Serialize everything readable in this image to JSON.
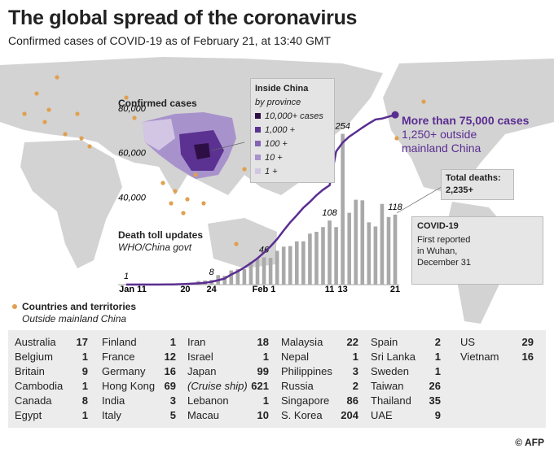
{
  "title": "The global spread of the coronavirus",
  "subtitle": "Confirmed cases of COVID-19 as of February 21, at 13:40 GMT",
  "chart_data": {
    "type": "line-bar",
    "categories": [
      "Jan 11",
      null,
      null,
      null,
      null,
      null,
      null,
      null,
      null,
      "20",
      null,
      null,
      null,
      "24",
      null,
      null,
      null,
      null,
      null,
      null,
      null,
      "Feb 1",
      null,
      null,
      null,
      null,
      null,
      null,
      null,
      null,
      null,
      "11",
      null,
      "13",
      null,
      null,
      null,
      null,
      null,
      null,
      null,
      "21"
    ],
    "ylim": [
      0,
      80000
    ],
    "yticks": [
      {
        "value": 40000,
        "label": "40,000"
      },
      {
        "value": 60000,
        "label": "60,000"
      },
      {
        "value": 80000,
        "label": "80,000"
      }
    ],
    "series": [
      {
        "name": "Confirmed cases",
        "type": "line",
        "color": "#5a2d91",
        "values": [
          41,
          41,
          41,
          41,
          41,
          45,
          62,
          121,
          198,
          291,
          440,
          571,
          830,
          1287,
          1975,
          2744,
          4515,
          5974,
          7711,
          9692,
          11791,
          14380,
          17205,
          20438,
          24324,
          28018,
          31161,
          34546,
          37198,
          40171,
          42638,
          44653,
          59804,
          63851,
          66492,
          68500,
          70548,
          72436,
          74185,
          74576,
          75465,
          76288
        ]
      },
      {
        "name": "Death toll updates",
        "source": "WHO/China govt",
        "type": "bar",
        "color": "#a9a9a9",
        "values": [
          1,
          null,
          null,
          null,
          null,
          null,
          null,
          null,
          null,
          null,
          null,
          6,
          7,
          8,
          16,
          15,
          24,
          26,
          26,
          38,
          43,
          46,
          45,
          57,
          64,
          65,
          73,
          73,
          86,
          89,
          97,
          108,
          97,
          254,
          121,
          143,
          142,
          105,
          98,
          136,
          114,
          118
        ],
        "value_labels": [
          "1",
          null,
          null,
          null,
          null,
          null,
          null,
          null,
          null,
          null,
          null,
          null,
          null,
          "8",
          null,
          null,
          null,
          null,
          null,
          null,
          null,
          "46",
          null,
          null,
          null,
          null,
          null,
          null,
          null,
          null,
          null,
          "108",
          null,
          "254",
          null,
          null,
          null,
          null,
          null,
          null,
          null,
          "118"
        ]
      }
    ],
    "annotations": {
      "cases": "More than 75,000 cases",
      "outside": "1,250+ outside mainland China",
      "deaths_title": "Total deaths:",
      "deaths_value": "2,235+"
    }
  },
  "inside_china": {
    "title": "Inside China",
    "subtitle": "by province",
    "legend": [
      {
        "label": "10,000+ cases",
        "color": "#2d0f45"
      },
      {
        "label": "1,000 +",
        "color": "#5b3291"
      },
      {
        "label": "100 +",
        "color": "#8565b3"
      },
      {
        "label": "10 +",
        "color": "#a892cc"
      },
      {
        "label": "1 +",
        "color": "#d2c6e4"
      }
    ]
  },
  "covid": {
    "title": "COVID-19",
    "text": "First reported in Wuhan, December 31"
  },
  "countries_legend": {
    "title": "Countries and territories",
    "subtitle": "Outside mainland China"
  },
  "countries": [
    [
      [
        "Australia",
        17
      ],
      [
        "Belgium",
        1
      ],
      [
        "Britain",
        9
      ],
      [
        "Cambodia",
        1
      ],
      [
        "Canada",
        8
      ],
      [
        "Egypt",
        1
      ]
    ],
    [
      [
        "Finland",
        1
      ],
      [
        "France",
        12
      ],
      [
        "Germany",
        16
      ],
      [
        "Hong Kong",
        69
      ],
      [
        "India",
        3
      ],
      [
        "Italy",
        5
      ]
    ],
    [
      [
        "Iran",
        18
      ],
      [
        "Israel",
        1
      ],
      [
        "Japan",
        99
      ],
      [
        "(Cruise ship)",
        621
      ],
      [
        "Lebanon",
        1
      ],
      [
        "Macau",
        10
      ]
    ],
    [
      [
        "Malaysia",
        22
      ],
      [
        "Nepal",
        1
      ],
      [
        "Philippines",
        3
      ],
      [
        "Russia",
        2
      ],
      [
        "Singapore",
        86
      ],
      [
        "S. Korea",
        204
      ]
    ],
    [
      [
        "Spain",
        2
      ],
      [
        "Sri Lanka",
        1
      ],
      [
        "Sweden",
        1
      ],
      [
        "Taiwan",
        26
      ],
      [
        "Thailand",
        35
      ],
      [
        "UAE",
        9
      ]
    ],
    [
      [
        "US",
        29
      ],
      [
        "Vietnam",
        16
      ]
    ]
  ],
  "credit": "© AFP"
}
